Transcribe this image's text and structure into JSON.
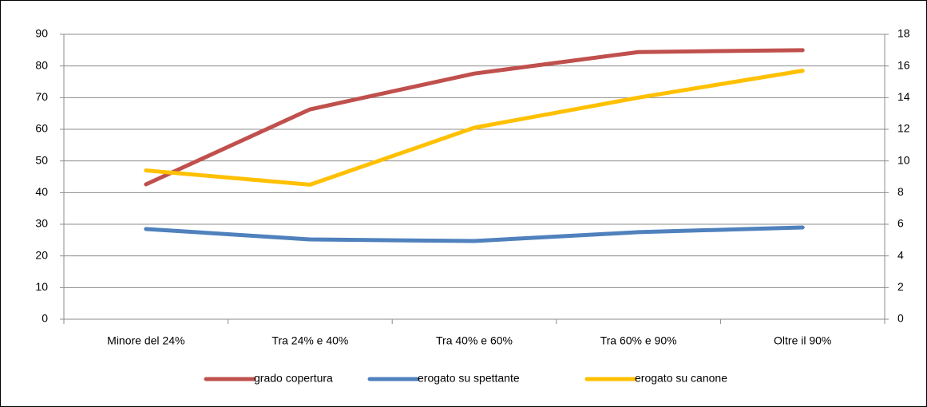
{
  "chart_data": {
    "type": "line",
    "categories": [
      "Minore del 24%",
      "Tra 24% e 40%",
      "Tra 40% e 60%",
      "Tra 60% e 90%",
      "Oltre il 90%"
    ],
    "series": [
      {
        "name": "grado copertura",
        "color": "#c0504d",
        "values": [
          42.6,
          66.3,
          77.6,
          84.4,
          85.0
        ]
      },
      {
        "name": "erogato su spettante",
        "color": "#4f81bd",
        "values": [
          28.5,
          25.2,
          24.7,
          27.5,
          29.0
        ]
      },
      {
        "name": "erogato su canone",
        "color": "#ffc000",
        "axis": "y2",
        "values": [
          9.4,
          8.5,
          12.1,
          14.0,
          15.7
        ]
      }
    ],
    "ylim": [
      0,
      90
    ],
    "yticks": [
      0,
      10,
      20,
      30,
      40,
      50,
      60,
      70,
      80,
      90
    ],
    "y2lim": [
      0,
      18
    ],
    "y2ticks": [
      0,
      2,
      4,
      6,
      8,
      10,
      12,
      14,
      16,
      18
    ],
    "grid": true,
    "legend": "bottom"
  }
}
